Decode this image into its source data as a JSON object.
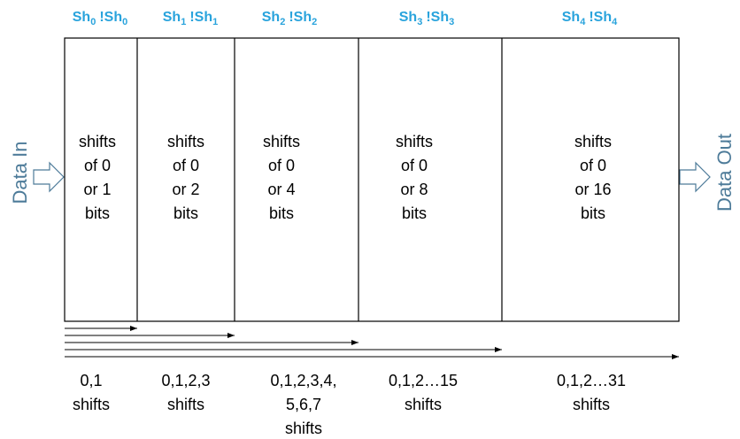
{
  "diagram": {
    "input_label": "Data In",
    "output_label": "Data Out",
    "stages": [
      {
        "select": "Sh",
        "index": "0",
        "complement": "!Sh",
        "lines": [
          "shifts",
          "of 0",
          "or 1",
          "bits"
        ],
        "range": [
          "0,1",
          "shifts"
        ]
      },
      {
        "select": "Sh",
        "index": "1",
        "complement": "!Sh",
        "lines": [
          "shifts",
          "of 0",
          "or 2",
          "bits"
        ],
        "range": [
          "0,1,2,3",
          "shifts"
        ]
      },
      {
        "select": "Sh",
        "index": "2",
        "complement": "!Sh",
        "lines": [
          "shifts",
          "of 0",
          "or 4",
          "bits"
        ],
        "range": [
          "0,1,2,3,4,",
          "5,6,7",
          "shifts"
        ]
      },
      {
        "select": "Sh",
        "index": "3",
        "complement": "!Sh",
        "lines": [
          "shifts",
          "of 0",
          "or 8",
          "bits"
        ],
        "range": [
          "0,1,2…15",
          "shifts"
        ]
      },
      {
        "select": "Sh",
        "index": "4",
        "complement": "!Sh",
        "lines": [
          "shifts",
          "of 0",
          "or 16",
          "bits"
        ],
        "range": [
          "0,1,2…31",
          "shifts"
        ]
      }
    ]
  }
}
